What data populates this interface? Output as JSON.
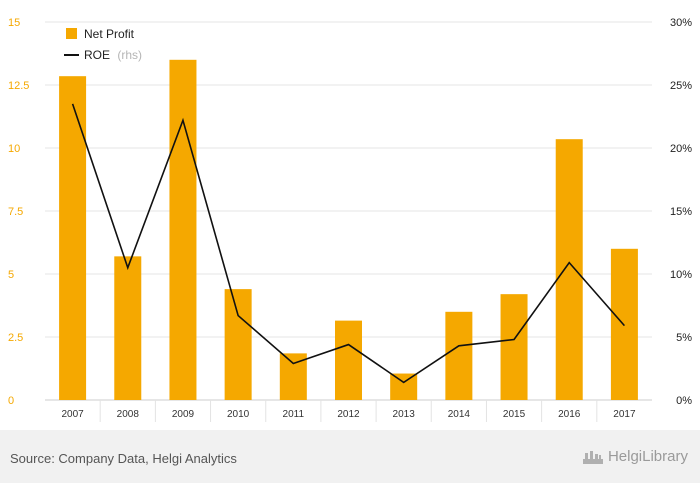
{
  "chart_data": {
    "type": "bar",
    "categories": [
      "2007",
      "2008",
      "2009",
      "2010",
      "2011",
      "2012",
      "2013",
      "2014",
      "2015",
      "2016",
      "2017"
    ],
    "series": [
      {
        "name": "Net Profit",
        "kind": "bar",
        "axis": "left",
        "color": "#f5a800",
        "values": [
          12.85,
          5.7,
          13.5,
          4.4,
          1.85,
          3.15,
          1.05,
          3.5,
          4.2,
          10.35,
          6.0
        ]
      },
      {
        "name": "ROE",
        "name_suffix": "(rhs)",
        "kind": "line",
        "axis": "right",
        "color": "#111111",
        "values": [
          23.5,
          10.5,
          22.2,
          6.7,
          2.9,
          4.4,
          1.4,
          4.3,
          4.8,
          10.9,
          5.9
        ]
      }
    ],
    "y_left": {
      "ylim": [
        0,
        15
      ],
      "ticks": [
        "0",
        "2.5",
        "5",
        "7.5",
        "10",
        "12.5",
        "15"
      ],
      "tick_values": [
        0,
        2.5,
        5,
        7.5,
        10,
        12.5,
        15
      ]
    },
    "y_right": {
      "ylim": [
        0,
        30
      ],
      "ticks": [
        "0%",
        "5%",
        "10%",
        "15%",
        "20%",
        "25%",
        "30%"
      ],
      "tick_values": [
        0,
        5,
        10,
        15,
        20,
        25,
        30
      ]
    },
    "grid": true,
    "legend_position": "top-left"
  },
  "footer": {
    "source": "Source: Company Data, Helgi Analytics",
    "brand": "HelgiLibrary",
    "brand_icon": "helgi-library-logo-icon"
  }
}
